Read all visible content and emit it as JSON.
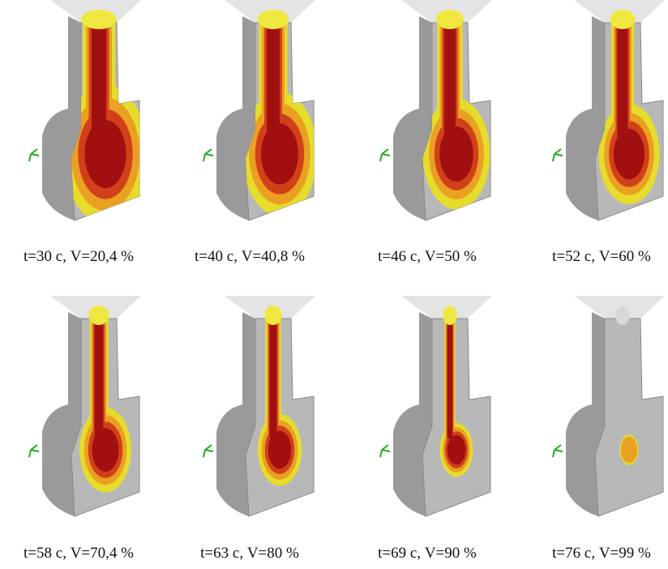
{
  "captions": [
    "t=30 с, V=20,4 %",
    "t=40 с, V=40,8 %",
    "t=46 с, V=50 %",
    "t=52 с, V=60 %",
    "t=58 с, V=70,4 %",
    "t=63 с, V=80 %",
    "t=69 с, V=90 %",
    "t=76 с, V=99 %"
  ]
}
